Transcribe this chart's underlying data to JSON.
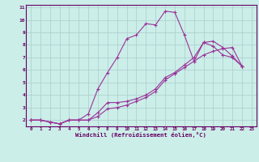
{
  "xlabel": "Windchill (Refroidissement éolien,°C)",
  "bg_color": "#cceee8",
  "line_color": "#993399",
  "grid_color": "#aacccc",
  "xlim": [
    -0.5,
    23.5
  ],
  "ylim": [
    1.5,
    11.2
  ],
  "yticks": [
    2,
    3,
    4,
    5,
    6,
    7,
    8,
    9,
    10,
    11
  ],
  "xticks": [
    0,
    1,
    2,
    3,
    4,
    5,
    6,
    7,
    8,
    9,
    10,
    11,
    12,
    13,
    14,
    15,
    16,
    17,
    18,
    19,
    20,
    21,
    22,
    23
  ],
  "line1_x": [
    0,
    1,
    2,
    3,
    4,
    5,
    6,
    7,
    8,
    9,
    10,
    11,
    12,
    13,
    14,
    15,
    16,
    17,
    18,
    19,
    20,
    21,
    22
  ],
  "line1_y": [
    2.0,
    2.0,
    1.85,
    1.7,
    2.0,
    2.0,
    2.5,
    4.5,
    5.8,
    7.0,
    8.5,
    8.8,
    9.7,
    9.6,
    10.7,
    10.6,
    8.8,
    6.7,
    8.2,
    7.9,
    7.2,
    7.0,
    6.3
  ],
  "line2_x": [
    0,
    1,
    2,
    3,
    4,
    5,
    6,
    7,
    8,
    9,
    10,
    11,
    12,
    13,
    14,
    15,
    16,
    17,
    18,
    19,
    20,
    21,
    22
  ],
  "line2_y": [
    2.0,
    2.0,
    1.85,
    1.7,
    2.0,
    2.0,
    2.0,
    2.3,
    2.9,
    3.0,
    3.2,
    3.5,
    3.8,
    4.3,
    5.2,
    5.7,
    6.2,
    6.7,
    7.2,
    7.5,
    7.7,
    7.8,
    6.3
  ],
  "line3_x": [
    0,
    1,
    2,
    3,
    4,
    5,
    6,
    7,
    8,
    9,
    10,
    11,
    12,
    13,
    14,
    15,
    16,
    17,
    18,
    19,
    20,
    21,
    22
  ],
  "line3_y": [
    2.0,
    2.0,
    1.85,
    1.7,
    2.0,
    2.0,
    2.0,
    2.6,
    3.4,
    3.4,
    3.5,
    3.7,
    4.0,
    4.5,
    5.4,
    5.8,
    6.4,
    7.0,
    8.2,
    8.3,
    7.8,
    7.1,
    6.3
  ]
}
